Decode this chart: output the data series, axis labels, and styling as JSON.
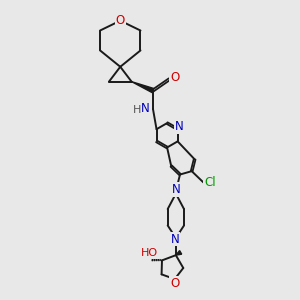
{
  "bg_color": "#e8e8e8",
  "bond_color": "#1a1a1a",
  "atom_colors": {
    "O": "#cc0000",
    "N": "#0000bb",
    "Cl": "#009900",
    "H": "#555555"
  },
  "fs": 8.5
}
